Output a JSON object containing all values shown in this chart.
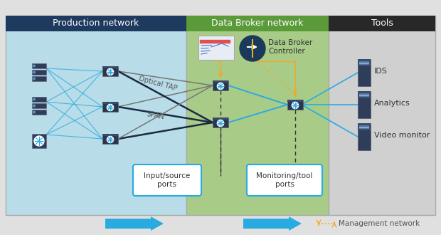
{
  "fig_w": 6.2,
  "fig_h": 3.3,
  "dpi": 100,
  "bg_color": "#e0e0e0",
  "prod_bg": "#b8dce8",
  "prod_header": "#1e3a5f",
  "broker_bg": "#a8cc88",
  "broker_header": "#5a9a38",
  "tools_bg": "#d0d0d0",
  "tools_header": "#282828",
  "prod_title": "Production network",
  "broker_title": "Data Broker network",
  "tools_title": "Tools",
  "controller_label": "Data Broker\nController",
  "optical_tap_label": "Optical TAP",
  "span_label": "SPAN",
  "input_ports_label": "Input/source\nports",
  "monitor_ports_label": "Monitoring/tool\nports",
  "mgmt_label": "Management network",
  "ids_label": "IDS",
  "analytics_label": "Analytics",
  "video_label": "Video monitor",
  "cyan": "#29abe2",
  "orange": "#f5a623",
  "dark_navy": "#1a2a42",
  "gray_line": "#777777",
  "white": "#ffffff"
}
